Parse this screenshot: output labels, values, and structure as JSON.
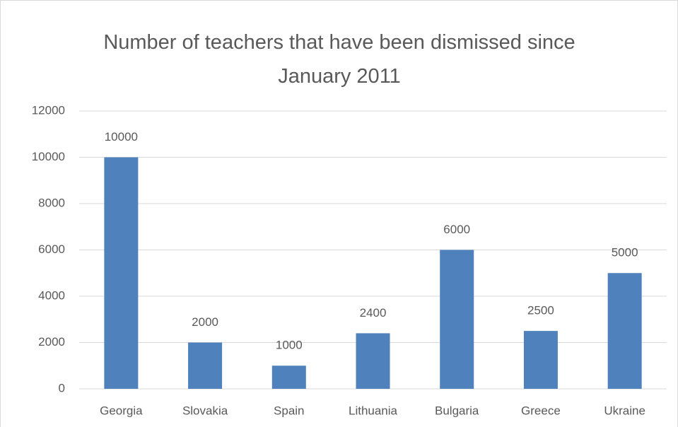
{
  "chart_data": {
    "type": "bar",
    "title": "Number of teachers that have been dismissed since January 2011",
    "categories": [
      "Georgia",
      "Slovakia",
      "Spain",
      "Lithuania",
      "Bulgaria",
      "Greece",
      "Ukraine"
    ],
    "values": [
      10000,
      2000,
      1000,
      2400,
      6000,
      2500,
      5000
    ],
    "color": "#4f81bd",
    "ylim": [
      0,
      12000
    ],
    "yticks": [
      0,
      2000,
      4000,
      6000,
      8000,
      10000,
      12000
    ],
    "grid": true,
    "data_labels": true
  }
}
